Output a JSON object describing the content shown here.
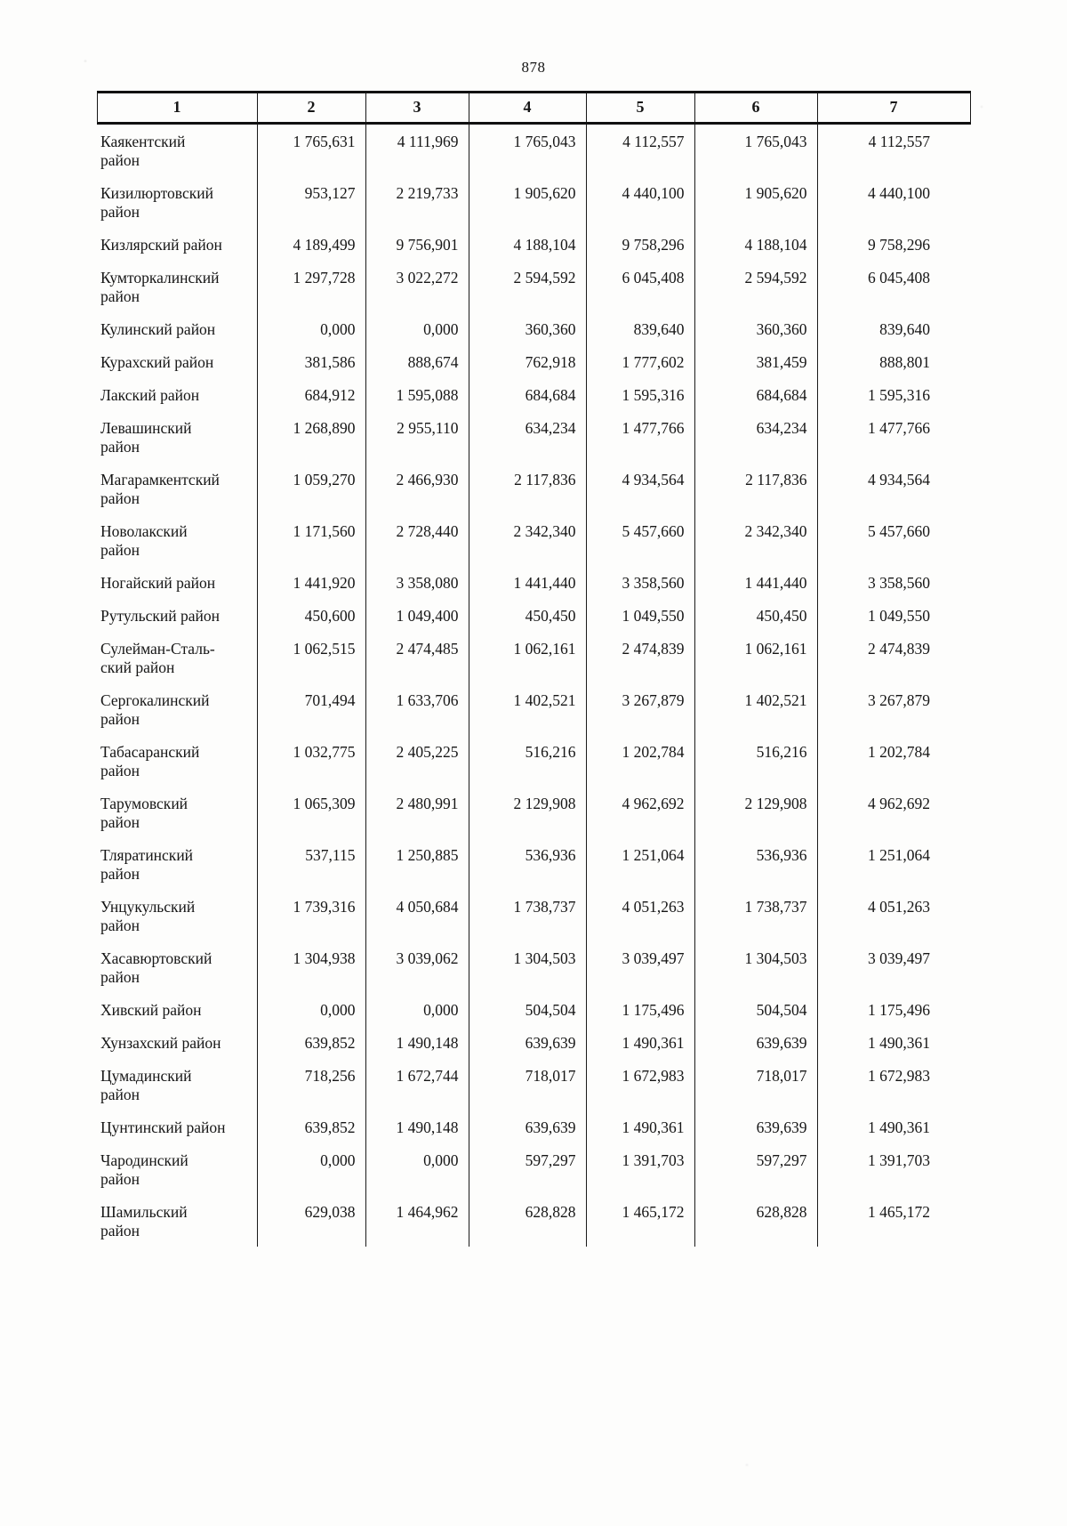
{
  "page": {
    "number": "878"
  },
  "table": {
    "column_headers": [
      "1",
      "2",
      "3",
      "4",
      "5",
      "6",
      "7"
    ],
    "rows": [
      {
        "name": "Каякентский\nрайон",
        "values": [
          "1 765,631",
          "4 111,969",
          "1 765,043",
          "4 112,557",
          "1 765,043",
          "4 112,557"
        ]
      },
      {
        "name": "Кизилюртовский\nрайон",
        "values": [
          "953,127",
          "2 219,733",
          "1 905,620",
          "4 440,100",
          "1 905,620",
          "4 440,100"
        ]
      },
      {
        "name": "Кизлярский район",
        "values": [
          "4 189,499",
          "9 756,901",
          "4 188,104",
          "9 758,296",
          "4 188,104",
          "9 758,296"
        ]
      },
      {
        "name": "Кумторкалинский\nрайон",
        "values": [
          "1 297,728",
          "3 022,272",
          "2 594,592",
          "6 045,408",
          "2 594,592",
          "6 045,408"
        ]
      },
      {
        "name": "Кулинский район",
        "values": [
          "0,000",
          "0,000",
          "360,360",
          "839,640",
          "360,360",
          "839,640"
        ]
      },
      {
        "name": "Курахский район",
        "values": [
          "381,586",
          "888,674",
          "762,918",
          "1 777,602",
          "381,459",
          "888,801"
        ]
      },
      {
        "name": "Лакский район",
        "values": [
          "684,912",
          "1 595,088",
          "684,684",
          "1 595,316",
          "684,684",
          "1 595,316"
        ]
      },
      {
        "name": "Левашинский\nрайон",
        "values": [
          "1 268,890",
          "2 955,110",
          "634,234",
          "1 477,766",
          "634,234",
          "1 477,766"
        ]
      },
      {
        "name": "Магарамкентский\nрайон",
        "values": [
          "1 059,270",
          "2 466,930",
          "2 117,836",
          "4 934,564",
          "2 117,836",
          "4 934,564"
        ]
      },
      {
        "name": "Новолакский\nрайон",
        "values": [
          "1 171,560",
          "2 728,440",
          "2 342,340",
          "5 457,660",
          "2 342,340",
          "5 457,660"
        ]
      },
      {
        "name": "Ногайский район",
        "values": [
          "1 441,920",
          "3 358,080",
          "1 441,440",
          "3 358,560",
          "1 441,440",
          "3 358,560"
        ]
      },
      {
        "name": "Рутульский район",
        "values": [
          "450,600",
          "1 049,400",
          "450,450",
          "1 049,550",
          "450,450",
          "1 049,550"
        ]
      },
      {
        "name": "Сулейман-Сталь-\nский район",
        "values": [
          "1 062,515",
          "2 474,485",
          "1 062,161",
          "2 474,839",
          "1 062,161",
          "2 474,839"
        ]
      },
      {
        "name": "Сергокалинский\nрайон",
        "values": [
          "701,494",
          "1 633,706",
          "1 402,521",
          "3 267,879",
          "1 402,521",
          "3 267,879"
        ]
      },
      {
        "name": "Табасаранский\nрайон",
        "values": [
          "1 032,775",
          "2 405,225",
          "516,216",
          "1 202,784",
          "516,216",
          "1 202,784"
        ]
      },
      {
        "name": "Тарумовский\nрайон",
        "values": [
          "1 065,309",
          "2 480,991",
          "2 129,908",
          "4 962,692",
          "2 129,908",
          "4 962,692"
        ]
      },
      {
        "name": "Тляратинский\nрайон",
        "values": [
          "537,115",
          "1 250,885",
          "536,936",
          "1 251,064",
          "536,936",
          "1 251,064"
        ]
      },
      {
        "name": "Унцукульский\nрайон",
        "values": [
          "1 739,316",
          "4 050,684",
          "1 738,737",
          "4 051,263",
          "1 738,737",
          "4 051,263"
        ]
      },
      {
        "name": "Хасавюртовский\nрайон",
        "values": [
          "1 304,938",
          "3 039,062",
          "1 304,503",
          "3 039,497",
          "1 304,503",
          "3 039,497"
        ]
      },
      {
        "name": "Хивский район",
        "values": [
          "0,000",
          "0,000",
          "504,504",
          "1 175,496",
          "504,504",
          "1 175,496"
        ]
      },
      {
        "name": "Хунзахский район",
        "values": [
          "639,852",
          "1 490,148",
          "639,639",
          "1 490,361",
          "639,639",
          "1 490,361"
        ]
      },
      {
        "name": "Цумадинский\nрайон",
        "values": [
          "718,256",
          "1 672,744",
          "718,017",
          "1 672,983",
          "718,017",
          "1 672,983"
        ]
      },
      {
        "name": "Цунтинский район",
        "values": [
          "639,852",
          "1 490,148",
          "639,639",
          "1 490,361",
          "639,639",
          "1 490,361"
        ]
      },
      {
        "name": "Чародинский\nрайон",
        "values": [
          "0,000",
          "0,000",
          "597,297",
          "1 391,703",
          "597,297",
          "1 391,703"
        ]
      },
      {
        "name": "Шамильский\nрайон",
        "values": [
          "629,038",
          "1 464,962",
          "628,828",
          "1 465,172",
          "628,828",
          "1 465,172"
        ]
      }
    ]
  }
}
